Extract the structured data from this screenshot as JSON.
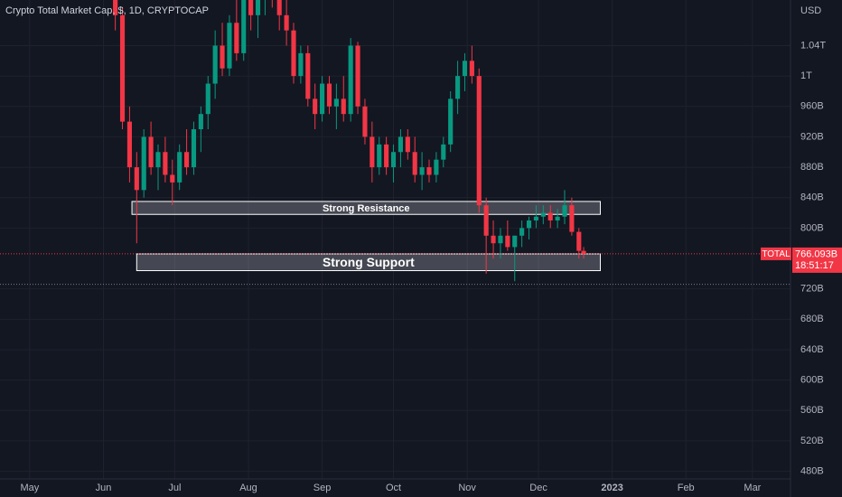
{
  "chart_data": {
    "type": "candlestick",
    "title": "Crypto Total Market Cap, $, 1D, CRYPTOCAP",
    "currency": "USD",
    "symbol": "TOTAL",
    "countdown": "18:51:17",
    "up_color": "#089981",
    "down_color": "#f23645",
    "grid": true,
    "x": [
      36,
      39,
      42,
      45,
      48,
      51,
      54,
      57,
      60,
      63,
      66,
      69,
      72,
      75,
      78,
      81,
      84,
      87,
      90,
      93,
      96,
      99,
      102,
      105,
      108,
      111,
      114,
      117,
      120,
      123,
      126,
      129,
      132,
      135,
      138,
      141,
      144,
      147,
      150,
      153,
      156,
      159,
      162,
      165,
      168,
      171,
      174,
      177,
      180,
      183,
      186,
      189,
      192,
      195,
      198,
      201,
      204,
      207,
      210,
      213,
      216,
      219,
      222,
      225,
      228,
      231,
      233
    ],
    "open": [
      1120,
      1080,
      940,
      880,
      850,
      920,
      880,
      900,
      870,
      860,
      900,
      880,
      930,
      950,
      990,
      1040,
      1010,
      1070,
      1030,
      1110,
      1080,
      1100,
      1120,
      1100,
      1080,
      1060,
      1000,
      1030,
      970,
      950,
      990,
      960,
      970,
      950,
      1040,
      960,
      920,
      880,
      910,
      880,
      900,
      920,
      900,
      870,
      880,
      870,
      890,
      910,
      970,
      1000,
      1020,
      1000,
      830,
      790,
      780,
      790,
      775,
      790,
      800,
      810,
      815,
      820,
      810,
      815,
      830,
      795,
      770
    ],
    "high": [
      1140,
      1090,
      960,
      900,
      930,
      940,
      910,
      920,
      890,
      910,
      930,
      940,
      960,
      1000,
      1060,
      1070,
      1080,
      1100,
      1120,
      1130,
      1110,
      1140,
      1150,
      1130,
      1100,
      1070,
      1040,
      1040,
      990,
      1000,
      1000,
      990,
      1000,
      1050,
      1045,
      970,
      940,
      920,
      920,
      910,
      930,
      930,
      920,
      900,
      890,
      900,
      920,
      980,
      1020,
      1030,
      1040,
      1010,
      840,
      810,
      800,
      810,
      790,
      810,
      815,
      830,
      830,
      830,
      825,
      850,
      840,
      800,
      775
    ],
    "low": [
      1060,
      930,
      860,
      780,
      840,
      870,
      850,
      860,
      830,
      850,
      870,
      870,
      900,
      930,
      970,
      1000,
      1000,
      1020,
      1020,
      1060,
      1050,
      1080,
      1090,
      1060,
      1040,
      990,
      990,
      960,
      930,
      940,
      950,
      930,
      940,
      940,
      950,
      910,
      860,
      870,
      870,
      860,
      880,
      890,
      860,
      850,
      860,
      860,
      880,
      900,
      950,
      980,
      990,
      820,
      740,
      760,
      760,
      770,
      730,
      775,
      785,
      800,
      805,
      800,
      800,
      805,
      790,
      760,
      760
    ],
    "close": [
      1080,
      940,
      880,
      850,
      920,
      880,
      900,
      870,
      860,
      900,
      880,
      930,
      950,
      990,
      1040,
      1010,
      1070,
      1030,
      1110,
      1080,
      1100,
      1120,
      1100,
      1080,
      1060,
      1000,
      1030,
      970,
      950,
      990,
      960,
      970,
      950,
      1040,
      960,
      920,
      880,
      910,
      880,
      900,
      920,
      900,
      870,
      880,
      870,
      890,
      910,
      970,
      1000,
      1020,
      1000,
      830,
      790,
      780,
      790,
      775,
      790,
      800,
      810,
      815,
      820,
      810,
      815,
      830,
      795,
      770,
      766.093
    ],
    "xlim": [
      -12.5,
      320
    ],
    "ylim": [
      470,
      1100
    ],
    "xticks": [
      {
        "value": 0,
        "label": "May"
      },
      {
        "value": 31,
        "label": "Jun"
      },
      {
        "value": 61,
        "label": "Jul"
      },
      {
        "value": 92,
        "label": "Aug"
      },
      {
        "value": 123,
        "label": "Sep"
      },
      {
        "value": 153,
        "label": "Oct"
      },
      {
        "value": 184,
        "label": "Nov"
      },
      {
        "value": 214,
        "label": "Dec"
      },
      {
        "value": 245,
        "label": "2023"
      },
      {
        "value": 276,
        "label": "Feb"
      },
      {
        "value": 304,
        "label": "Mar"
      }
    ],
    "yticks": [
      {
        "value": 1040,
        "label": "1.04T"
      },
      {
        "value": 1000,
        "label": "1T"
      },
      {
        "value": 960,
        "label": "960B"
      },
      {
        "value": 920,
        "label": "920B"
      },
      {
        "value": 880,
        "label": "880B"
      },
      {
        "value": 840,
        "label": "840B"
      },
      {
        "value": 800,
        "label": "800B"
      },
      {
        "value": 720,
        "label": "720B"
      },
      {
        "value": 680,
        "label": "680B"
      },
      {
        "value": 640,
        "label": "640B"
      },
      {
        "value": 600,
        "label": "600B"
      },
      {
        "value": 560,
        "label": "560B"
      },
      {
        "value": 520,
        "label": "520B"
      },
      {
        "value": 480,
        "label": "480B"
      }
    ],
    "last_price": {
      "value": 766.093,
      "label": "766.093B"
    },
    "hline": 726,
    "zones": [
      {
        "label": "Strong Resistance",
        "x": [
          43,
          240
        ],
        "y": [
          818,
          835
        ]
      },
      {
        "label": "Strong Support",
        "x": [
          45,
          240
        ],
        "y": [
          744,
          766
        ]
      }
    ]
  }
}
